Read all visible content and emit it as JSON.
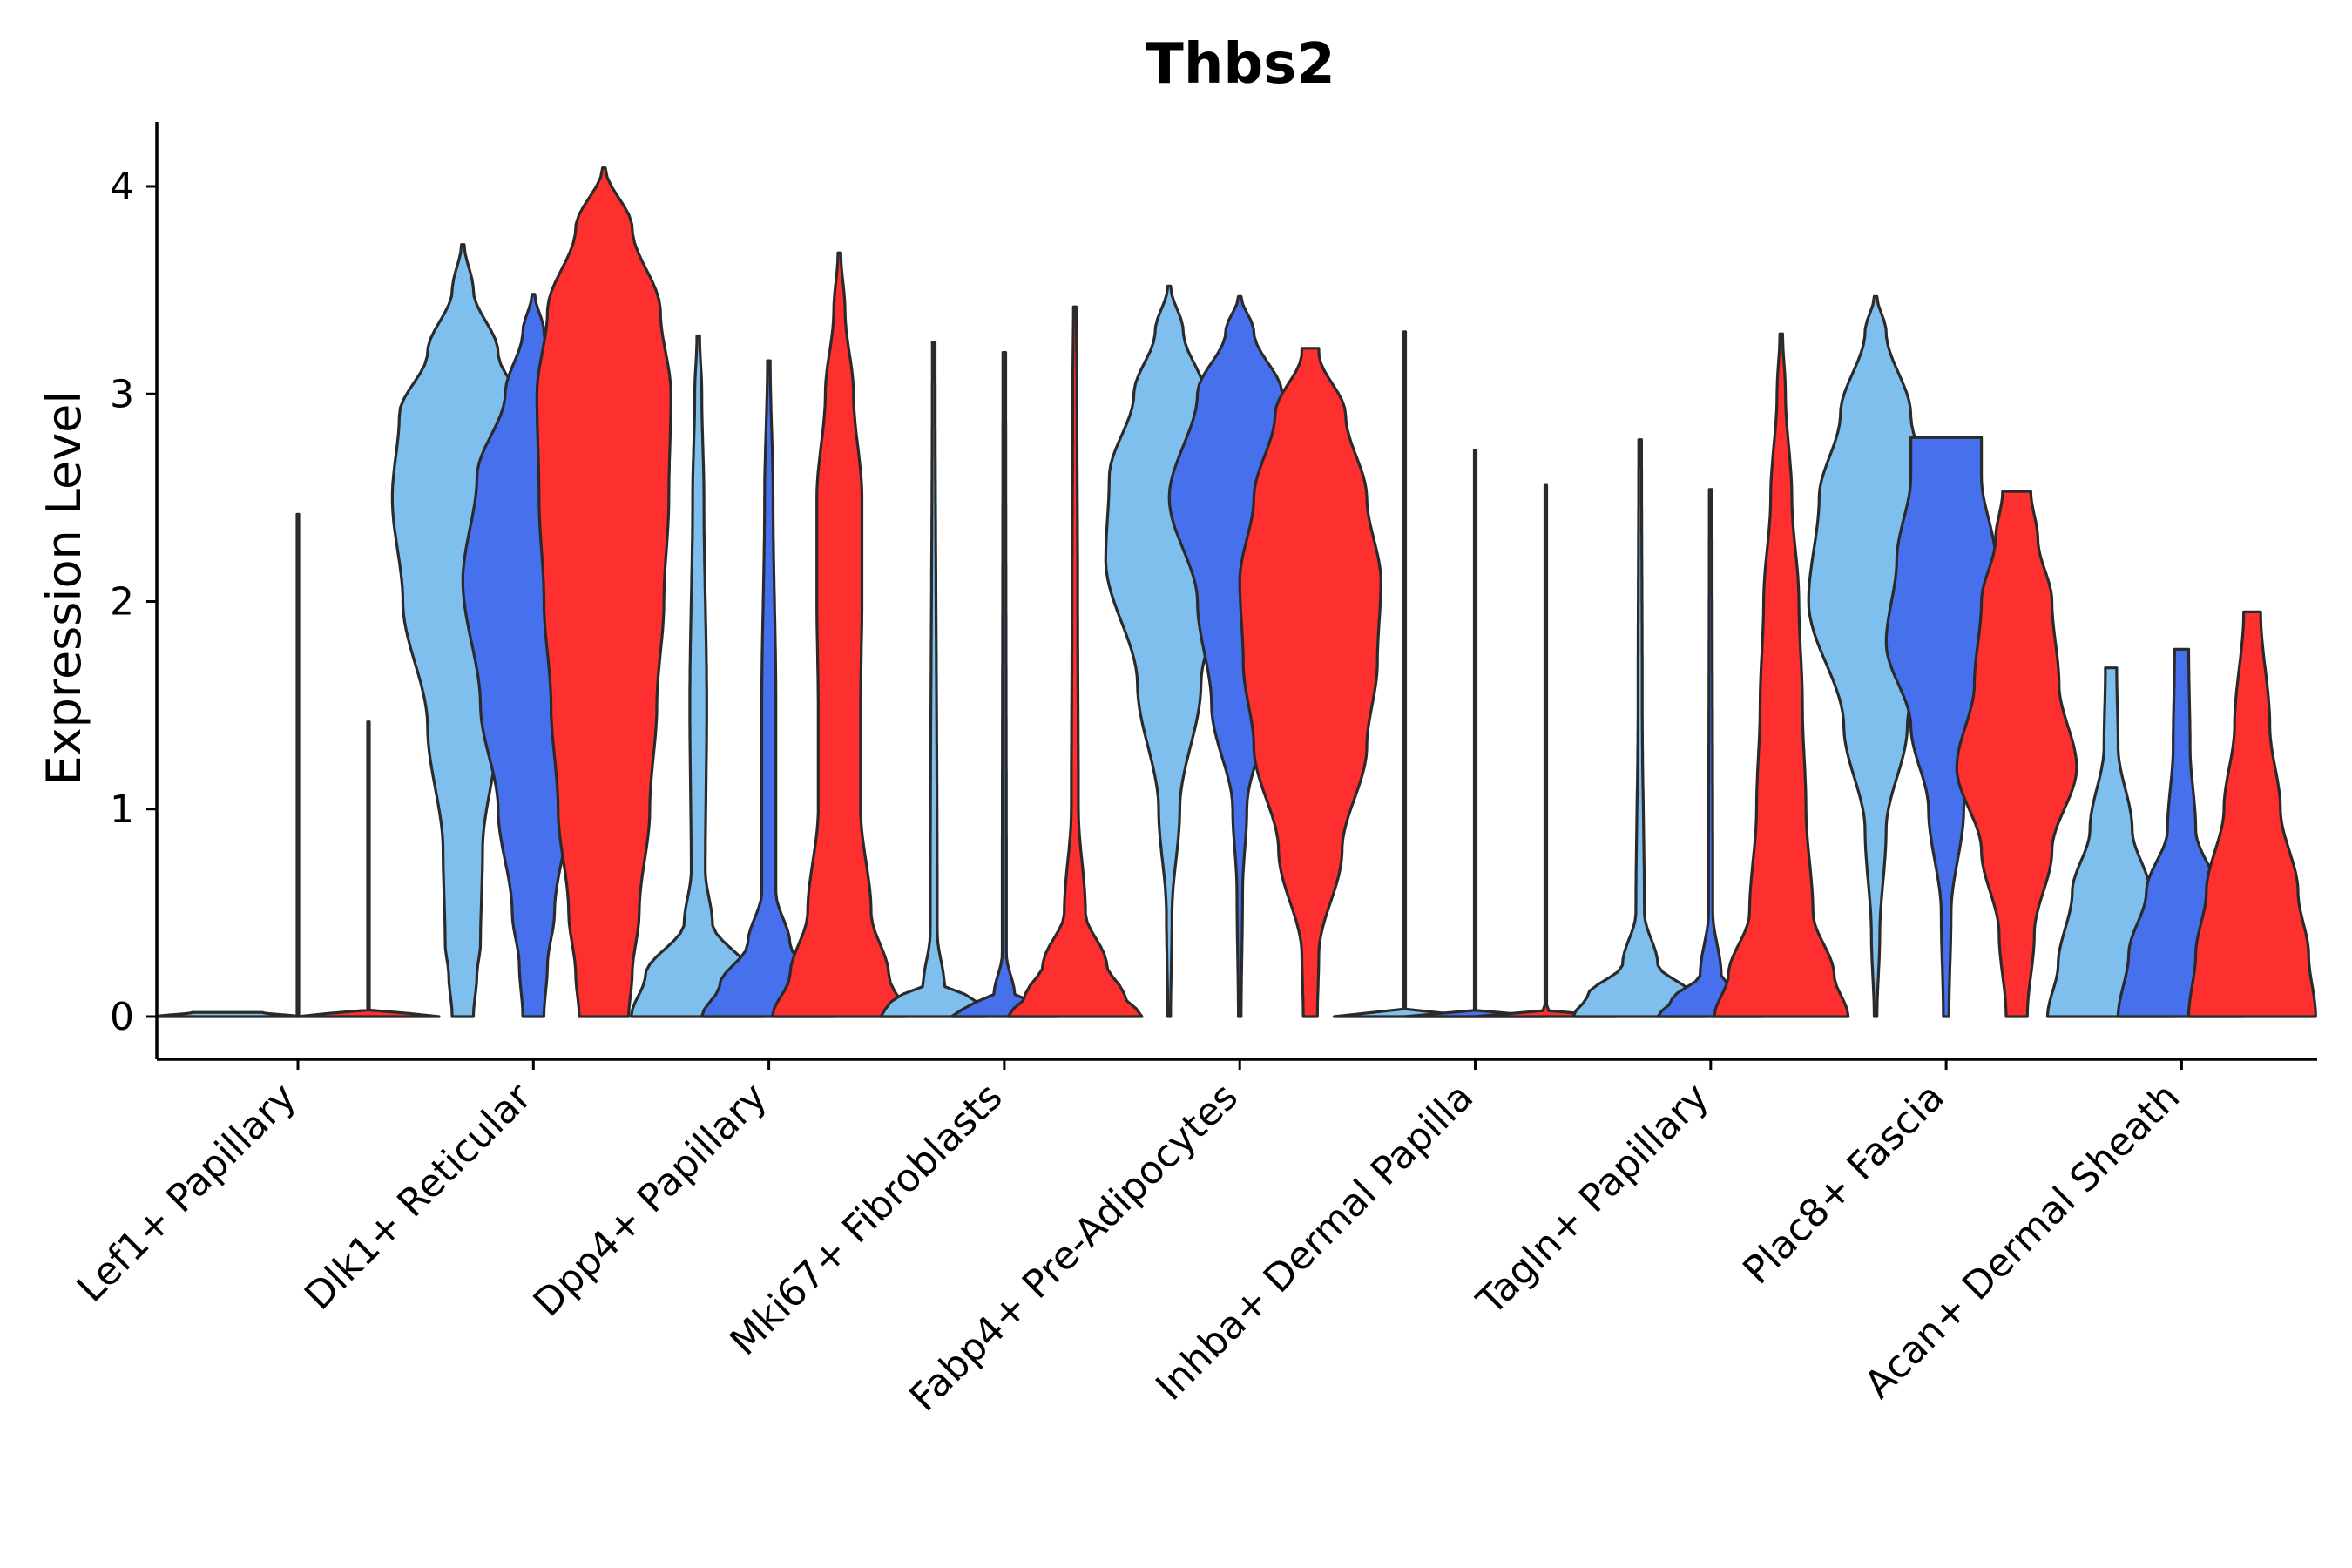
{
  "chart_data": {
    "type": "violin",
    "title": "Thbs2",
    "xlabel": "",
    "ylabel": "Expression Level",
    "ylim": [
      -0.2,
      4.3
    ],
    "yticks": [
      0,
      1,
      2,
      3,
      4
    ],
    "series_colors": [
      "#7fbfed",
      "#4670ec",
      "#fe2f2f"
    ],
    "categories": [
      "Lef1+ Papillary",
      "Dlk1+ Reticular",
      "Dpp4+ Papillary",
      "Mki67+ Fibroblasts",
      "Fabp4+ Pre-Adipocytes",
      "Inhba+ Dermal Papilla",
      "Tagln+ Papillary",
      "Plac8+ Fascia",
      "Acan+ Dermal Sheath"
    ],
    "violins": [
      [
        {
          "max": 0.02,
          "profile": [
            [
              0,
              1
            ],
            [
              0.02,
              0.5
            ]
          ]
        },
        {
          "max": 2.42,
          "profile": [
            [
              0,
              0.01
            ],
            [
              0.02,
              0.01
            ],
            [
              2.42,
              0.01
            ]
          ]
        },
        {
          "max": 1.42,
          "profile": [
            [
              0,
              1
            ],
            [
              0.02,
              0.5
            ],
            [
              0.03,
              0.01
            ],
            [
              1.42,
              0.01
            ]
          ]
        }
      ],
      [
        {
          "max": 3.72,
          "profile": [
            [
              0,
              0.15
            ],
            [
              0.2,
              0.2
            ],
            [
              0.35,
              0.25
            ],
            [
              0.8,
              0.28
            ],
            [
              1.4,
              0.5
            ],
            [
              2.0,
              0.85
            ],
            [
              2.5,
              1.0
            ],
            [
              2.9,
              0.9
            ],
            [
              3.2,
              0.5
            ],
            [
              3.5,
              0.15
            ],
            [
              3.72,
              0.02
            ]
          ]
        },
        {
          "max": 3.48,
          "profile": [
            [
              0,
              0.15
            ],
            [
              0.25,
              0.2
            ],
            [
              0.5,
              0.3
            ],
            [
              1.0,
              0.5
            ],
            [
              1.5,
              0.75
            ],
            [
              2.1,
              1.0
            ],
            [
              2.6,
              0.8
            ],
            [
              3.0,
              0.4
            ],
            [
              3.3,
              0.15
            ],
            [
              3.48,
              0.02
            ]
          ]
        },
        {
          "max": 4.09,
          "profile": [
            [
              0,
              0.35
            ],
            [
              0.2,
              0.4
            ],
            [
              0.5,
              0.5
            ],
            [
              1.0,
              0.65
            ],
            [
              1.5,
              0.75
            ],
            [
              2.0,
              0.85
            ],
            [
              2.5,
              0.92
            ],
            [
              3.0,
              0.95
            ],
            [
              3.4,
              0.8
            ],
            [
              3.8,
              0.4
            ],
            [
              4.09,
              0.02
            ]
          ]
        }
      ],
      [
        {
          "max": 3.28,
          "profile": [
            [
              0,
              0.95
            ],
            [
              0.2,
              0.75
            ],
            [
              0.45,
              0.2
            ],
            [
              0.7,
              0.1
            ],
            [
              1.5,
              0.12
            ],
            [
              2.5,
              0.08
            ],
            [
              3.0,
              0.05
            ],
            [
              3.28,
              0.02
            ]
          ]
        },
        {
          "max": 3.16,
          "profile": [
            [
              0,
              0.95
            ],
            [
              0.15,
              0.7
            ],
            [
              0.35,
              0.3
            ],
            [
              0.6,
              0.1
            ],
            [
              1.5,
              0.1
            ],
            [
              2.5,
              0.06
            ],
            [
              3.16,
              0.02
            ]
          ]
        },
        {
          "max": 3.68,
          "profile": [
            [
              0,
              0.95
            ],
            [
              0.2,
              0.7
            ],
            [
              0.5,
              0.45
            ],
            [
              1.0,
              0.3
            ],
            [
              1.5,
              0.3
            ],
            [
              2.0,
              0.32
            ],
            [
              2.5,
              0.32
            ],
            [
              3.0,
              0.2
            ],
            [
              3.4,
              0.08
            ],
            [
              3.68,
              0.02
            ]
          ]
        }
      ],
      [
        {
          "max": 3.25,
          "profile": [
            [
              0,
              0.75
            ],
            [
              0.08,
              0.6
            ],
            [
              0.15,
              0.15
            ],
            [
              0.4,
              0.05
            ],
            [
              3.25,
              0.02
            ]
          ]
        },
        {
          "max": 3.2,
          "profile": [
            [
              0,
              0.75
            ],
            [
              0.05,
              0.55
            ],
            [
              0.1,
              0.15
            ],
            [
              0.3,
              0.03
            ],
            [
              3.2,
              0.02
            ]
          ]
        },
        {
          "max": 3.42,
          "profile": [
            [
              0,
              0.95
            ],
            [
              0.1,
              0.7
            ],
            [
              0.25,
              0.45
            ],
            [
              0.5,
              0.15
            ],
            [
              1.0,
              0.05
            ],
            [
              2.0,
              0.04
            ],
            [
              3.0,
              0.03
            ],
            [
              3.42,
              0.02
            ]
          ]
        }
      ],
      [
        {
          "max": 3.52,
          "profile": [
            [
              0,
              0.02
            ],
            [
              0.5,
              0.04
            ],
            [
              1.0,
              0.15
            ],
            [
              1.6,
              0.45
            ],
            [
              2.2,
              0.9
            ],
            [
              2.6,
              0.85
            ],
            [
              3.0,
              0.5
            ],
            [
              3.3,
              0.2
            ],
            [
              3.52,
              0.02
            ]
          ]
        },
        {
          "max": 3.47,
          "profile": [
            [
              0,
              0.02
            ],
            [
              0.6,
              0.04
            ],
            [
              1.0,
              0.1
            ],
            [
              1.5,
              0.4
            ],
            [
              2.0,
              0.6
            ],
            [
              2.5,
              1.0
            ],
            [
              3.0,
              0.6
            ],
            [
              3.3,
              0.2
            ],
            [
              3.47,
              0.02
            ]
          ]
        },
        {
          "max": 3.22,
          "profile": [
            [
              0,
              0.1
            ],
            [
              0.3,
              0.12
            ],
            [
              0.8,
              0.45
            ],
            [
              1.3,
              0.8
            ],
            [
              1.7,
              0.95
            ],
            [
              2.1,
              1.0
            ],
            [
              2.5,
              0.8
            ],
            [
              2.9,
              0.5
            ],
            [
              3.2,
              0.12
            ],
            [
              3.22,
              0.12
            ]
          ]
        }
      ],
      [
        {
          "max": 3.3,
          "profile": [
            [
              0,
              1
            ],
            [
              0.02,
              0.5
            ],
            [
              0.03,
              0.01
            ],
            [
              3.3,
              0.01
            ]
          ]
        },
        {
          "max": 2.73,
          "profile": [
            [
              0,
              1
            ],
            [
              0.02,
              0.5
            ],
            [
              0.03,
              0.01
            ],
            [
              2.73,
              0.01
            ]
          ]
        },
        {
          "max": 2.56,
          "profile": [
            [
              0,
              1
            ],
            [
              0.02,
              0.5
            ],
            [
              0.03,
              0.01
            ],
            [
              2.56,
              0.01
            ]
          ]
        }
      ],
      [
        {
          "max": 2.78,
          "profile": [
            [
              0,
              0.95
            ],
            [
              0.1,
              0.75
            ],
            [
              0.25,
              0.25
            ],
            [
              0.5,
              0.06
            ],
            [
              1.5,
              0.03
            ],
            [
              2.78,
              0.02
            ]
          ]
        },
        {
          "max": 2.54,
          "profile": [
            [
              0,
              0.75
            ],
            [
              0.08,
              0.55
            ],
            [
              0.2,
              0.15
            ],
            [
              0.5,
              0.03
            ],
            [
              2.54,
              0.02
            ]
          ]
        },
        {
          "max": 3.29,
          "profile": [
            [
              0,
              0.95
            ],
            [
              0.2,
              0.75
            ],
            [
              0.5,
              0.45
            ],
            [
              1.0,
              0.35
            ],
            [
              1.5,
              0.3
            ],
            [
              2.0,
              0.25
            ],
            [
              2.5,
              0.15
            ],
            [
              3.0,
              0.06
            ],
            [
              3.29,
              0.02
            ]
          ]
        }
      ],
      [
        {
          "max": 3.47,
          "profile": [
            [
              0,
              0.02
            ],
            [
              0.4,
              0.06
            ],
            [
              0.9,
              0.15
            ],
            [
              1.4,
              0.45
            ],
            [
              2.0,
              0.95
            ],
            [
              2.5,
              0.8
            ],
            [
              2.9,
              0.5
            ],
            [
              3.3,
              0.15
            ],
            [
              3.47,
              0.02
            ]
          ]
        },
        {
          "max": 2.79,
          "profile": [
            [
              0,
              0.04
            ],
            [
              0.5,
              0.07
            ],
            [
              1.0,
              0.25
            ],
            [
              1.4,
              0.5
            ],
            [
              1.8,
              0.85
            ],
            [
              2.2,
              0.7
            ],
            [
              2.6,
              0.5
            ],
            [
              2.79,
              0.5
            ]
          ]
        },
        {
          "max": 2.53,
          "profile": [
            [
              0,
              0.15
            ],
            [
              0.4,
              0.25
            ],
            [
              0.8,
              0.5
            ],
            [
              1.2,
              0.85
            ],
            [
              1.6,
              0.6
            ],
            [
              2.0,
              0.5
            ],
            [
              2.3,
              0.3
            ],
            [
              2.53,
              0.2
            ]
          ]
        }
      ],
      [
        {
          "max": 1.68,
          "profile": [
            [
              0,
              0.9
            ],
            [
              0.25,
              0.75
            ],
            [
              0.6,
              0.55
            ],
            [
              0.9,
              0.3
            ],
            [
              1.3,
              0.1
            ],
            [
              1.68,
              0.08
            ]
          ]
        },
        {
          "max": 1.77,
          "profile": [
            [
              0,
              0.9
            ],
            [
              0.3,
              0.75
            ],
            [
              0.6,
              0.5
            ],
            [
              0.9,
              0.2
            ],
            [
              1.3,
              0.12
            ],
            [
              1.77,
              0.1
            ]
          ]
        },
        {
          "max": 1.95,
          "profile": [
            [
              0,
              0.9
            ],
            [
              0.3,
              0.8
            ],
            [
              0.6,
              0.65
            ],
            [
              1.0,
              0.4
            ],
            [
              1.4,
              0.25
            ],
            [
              1.95,
              0.12
            ]
          ]
        }
      ]
    ]
  }
}
